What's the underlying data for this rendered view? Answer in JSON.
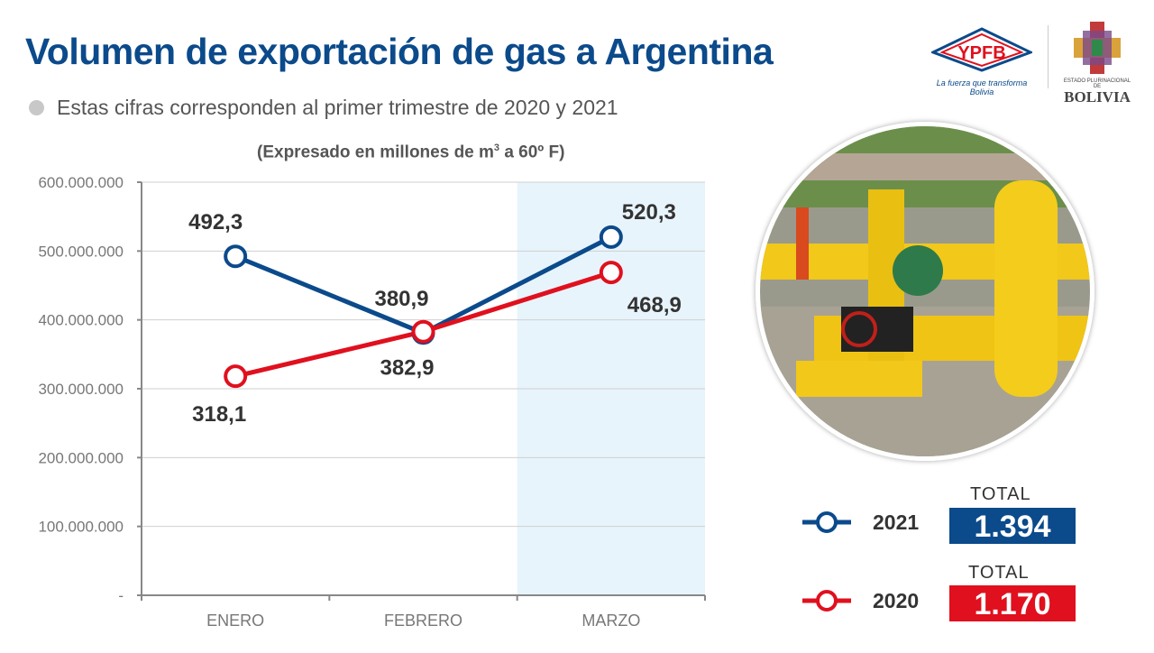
{
  "header": {
    "title": "Volumen de exportación de gas a Argentina",
    "subtitle": "Estas cifras corresponden al primer trimestre de 2020 y 2021"
  },
  "logos": {
    "ypfb": "YPFB",
    "ypfb_tagline": "La fuerza que transforma Bolivia",
    "bolivia_small": "ESTADO PLURINACIONAL DE",
    "bolivia_big": "BOLIVIA"
  },
  "chart_data": {
    "type": "line",
    "title": "(Expresado en millones de m³ a 60º F)",
    "title_main": "(Expresado en millones de m",
    "title_sup": "3",
    "title_end": " a 60º F)",
    "categories": [
      "ENERO",
      "FEBRERO",
      "MARZO"
    ],
    "highlighted_category": "MARZO",
    "ylim": [
      0,
      600000000
    ],
    "yticks": [
      0,
      100000000,
      200000000,
      300000000,
      400000000,
      500000000,
      600000000
    ],
    "ytick_labels": [
      "-",
      "100.000.000",
      "200.000.000",
      "300.000.000",
      "400.000.000",
      "500.000.000",
      "600.000.000"
    ],
    "grid": true,
    "series": [
      {
        "name": "2021",
        "color": "#0b4a8b",
        "values": [
          492300000,
          380900000,
          520300000
        ],
        "labels": [
          "492,3",
          "380,9",
          "520,3"
        ]
      },
      {
        "name": "2020",
        "color": "#e0101e",
        "values": [
          318100000,
          382900000,
          468900000
        ],
        "labels": [
          "318,1",
          "382,9",
          "468,9"
        ]
      }
    ],
    "legend_placement": "bottom-right"
  },
  "totals": [
    {
      "year": "2021",
      "label": "TOTAL",
      "value": "1.394",
      "color": "#0b4a8b"
    },
    {
      "year": "2020",
      "label": "TOTAL",
      "value": "1.170",
      "color": "#e0101e"
    }
  ],
  "colors": {
    "title": "#0b4a8b",
    "highlight_band": "#e8f4fc",
    "grid": "#cfcfcf"
  }
}
